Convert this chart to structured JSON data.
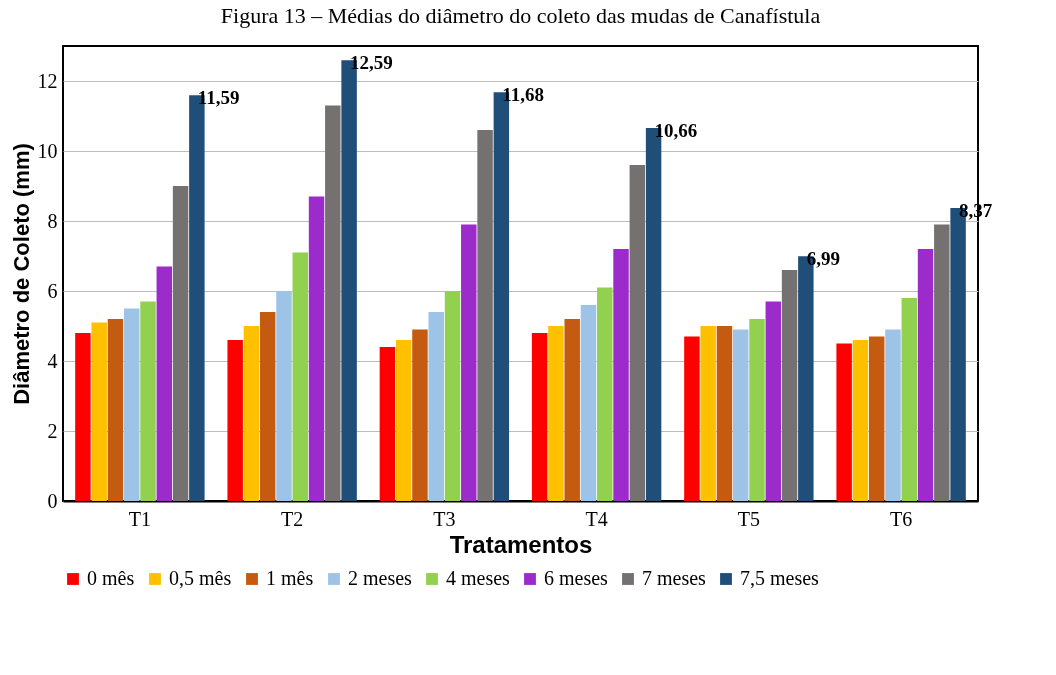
{
  "chart_data": {
    "type": "bar",
    "title": "Figura 13 – Médias do diâmetro do coleto das mudas de Canafístula",
    "xlabel": "Tratamentos",
    "ylabel": "Diâmetro de Coleto (mm)",
    "categories": [
      "T1",
      "T2",
      "T3",
      "T4",
      "T5",
      "T6"
    ],
    "series": [
      {
        "name": "0 mês",
        "color": "#ff0000",
        "values": [
          4.8,
          4.6,
          4.4,
          4.8,
          4.7,
          4.5
        ]
      },
      {
        "name": "0,5 mês",
        "color": "#ffc000",
        "values": [
          5.1,
          5.0,
          4.6,
          5.0,
          5.0,
          4.6
        ]
      },
      {
        "name": "1 mês",
        "color": "#c55a11",
        "values": [
          5.2,
          5.4,
          4.9,
          5.2,
          5.0,
          4.7
        ]
      },
      {
        "name": "2 meses",
        "color": "#9dc3e6",
        "values": [
          5.5,
          6.0,
          5.4,
          5.6,
          4.9,
          4.9
        ]
      },
      {
        "name": "4 meses",
        "color": "#92d050",
        "values": [
          5.7,
          7.1,
          6.0,
          6.1,
          5.2,
          5.8
        ]
      },
      {
        "name": "6 meses",
        "color": "#9b2bcb",
        "values": [
          6.7,
          8.7,
          7.9,
          7.2,
          5.7,
          7.2
        ]
      },
      {
        "name": "7 meses",
        "color": "#767171",
        "values": [
          9.0,
          11.3,
          10.6,
          9.6,
          6.6,
          7.9
        ]
      },
      {
        "name": "7,5 meses",
        "color": "#1f4e79",
        "values": [
          11.59,
          12.59,
          11.68,
          10.66,
          6.99,
          8.37
        ],
        "value_labels": [
          "11,59",
          "12,59",
          "11,68",
          "10,66",
          "6,99",
          "8,37"
        ]
      }
    ],
    "ylim": [
      0,
      13
    ],
    "yticks": [
      0,
      2,
      4,
      6,
      8,
      10,
      12
    ],
    "grid": "y",
    "legend": "bottom"
  }
}
